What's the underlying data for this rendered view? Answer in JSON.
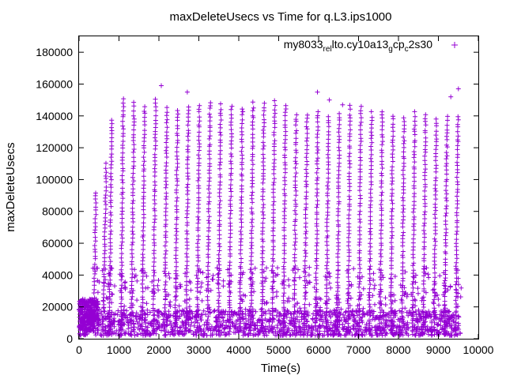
{
  "chart_data": {
    "type": "scatter",
    "title": "maxDeleteUsecs vs Time for q.L3.ips1000",
    "xlabel": "Time(s)",
    "ylabel": "maxDeleteUsecs",
    "xlim": [
      0,
      10000
    ],
    "ylim": [
      0,
      190000
    ],
    "xticks": [
      0,
      1000,
      2000,
      3000,
      4000,
      5000,
      6000,
      7000,
      8000,
      9000,
      10000
    ],
    "yticks": [
      0,
      20000,
      40000,
      60000,
      80000,
      100000,
      120000,
      140000,
      160000,
      180000
    ],
    "grid": false,
    "legend_position": "top-right",
    "marker": "+",
    "color": "#9400d3",
    "legend": {
      "parts": [
        {
          "text": "my8033",
          "sub": false
        },
        {
          "text": "rel",
          "sub": true
        },
        {
          "text": "lto.cy10a13",
          "sub": false
        },
        {
          "text": "g",
          "sub": true
        },
        {
          "text": "cp",
          "sub": false
        },
        {
          "text": "c",
          "sub": true
        },
        {
          "text": "2s30",
          "sub": false
        }
      ]
    },
    "series": [
      {
        "ramps": [
          {
            "x0": 370,
            "x1": 420,
            "peak": 92000
          },
          {
            "x0": 600,
            "x1": 680,
            "peak": 110000
          },
          {
            "x0": 760,
            "x1": 820,
            "peak": 138000
          },
          {
            "x0": 1050,
            "x1": 1110,
            "peak": 151000
          },
          {
            "x0": 1310,
            "x1": 1380,
            "peak": 148000
          },
          {
            "x0": 1580,
            "x1": 1640,
            "peak": 146000
          },
          {
            "x0": 1860,
            "x1": 1920,
            "peak": 150000
          },
          {
            "x0": 2150,
            "x1": 2200,
            "peak": 145000
          },
          {
            "x0": 2410,
            "x1": 2470,
            "peak": 144000
          },
          {
            "x0": 2680,
            "x1": 2740,
            "peak": 146000
          },
          {
            "x0": 2960,
            "x1": 3010,
            "peak": 147000
          },
          {
            "x0": 3220,
            "x1": 3280,
            "peak": 149000
          },
          {
            "x0": 3490,
            "x1": 3550,
            "peak": 147000
          },
          {
            "x0": 3760,
            "x1": 3820,
            "peak": 146000
          },
          {
            "x0": 4030,
            "x1": 4090,
            "peak": 145000
          },
          {
            "x0": 4300,
            "x1": 4360,
            "peak": 148000
          },
          {
            "x0": 4580,
            "x1": 4630,
            "peak": 148000
          },
          {
            "x0": 4840,
            "x1": 4900,
            "peak": 149000
          },
          {
            "x0": 5120,
            "x1": 5170,
            "peak": 147000
          },
          {
            "x0": 5390,
            "x1": 5440,
            "peak": 141000
          },
          {
            "x0": 5650,
            "x1": 5710,
            "peak": 141000
          },
          {
            "x0": 5930,
            "x1": 5980,
            "peak": 143000
          },
          {
            "x0": 6190,
            "x1": 6250,
            "peak": 140000
          },
          {
            "x0": 6470,
            "x1": 6520,
            "peak": 142000
          },
          {
            "x0": 6740,
            "x1": 6790,
            "peak": 146000
          },
          {
            "x0": 7010,
            "x1": 7060,
            "peak": 146000
          },
          {
            "x0": 7270,
            "x1": 7330,
            "peak": 142000
          },
          {
            "x0": 7540,
            "x1": 7600,
            "peak": 143000
          },
          {
            "x0": 7810,
            "x1": 7860,
            "peak": 140000
          },
          {
            "x0": 8090,
            "x1": 8140,
            "peak": 139000
          },
          {
            "x0": 8350,
            "x1": 8410,
            "peak": 142000
          },
          {
            "x0": 8620,
            "x1": 8680,
            "peak": 141000
          },
          {
            "x0": 8890,
            "x1": 8950,
            "peak": 138000
          },
          {
            "x0": 9160,
            "x1": 9220,
            "peak": 139000
          },
          {
            "x0": 9430,
            "x1": 9490,
            "peak": 140000
          }
        ],
        "outliers": [
          [
            2060,
            159000
          ],
          [
            2710,
            155000
          ],
          [
            5970,
            155000
          ],
          [
            6270,
            150000
          ],
          [
            9500,
            157000
          ],
          [
            9310,
            152000
          ],
          [
            6600,
            147000
          ]
        ],
        "baseline": {
          "x_range": [
            0,
            9550
          ],
          "y_range": [
            2000,
            18000
          ],
          "count": 1400
        },
        "early_cluster": {
          "x_range": [
            0,
            500
          ],
          "y_range": [
            5000,
            25000
          ],
          "count": 260
        }
      }
    ]
  }
}
